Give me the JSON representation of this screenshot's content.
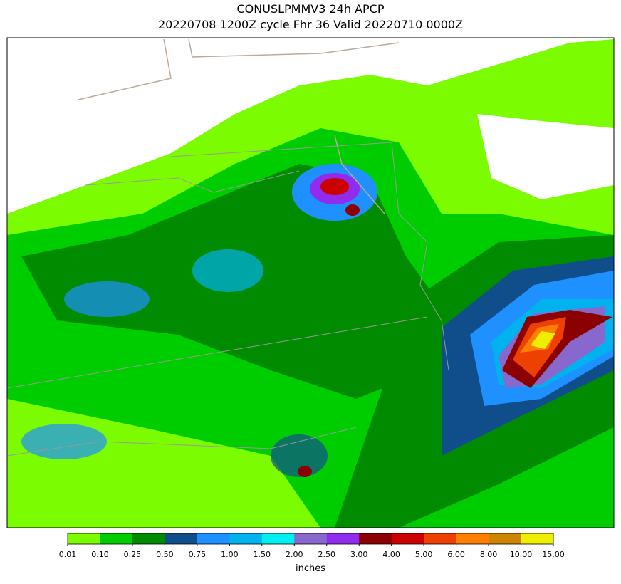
{
  "chart_data": {
    "type": "map",
    "title": "CONUSLPMMV3 24h APCP",
    "subtitle": "20220708 1200Z cycle Fhr 36 Valid 20220710 0000Z",
    "colorbar": {
      "label": "inches",
      "ticks": [
        {
          "value": 0.01,
          "label": "0.01"
        },
        {
          "value": 0.1,
          "label": "0.10"
        },
        {
          "value": 0.25,
          "label": "0.25"
        },
        {
          "value": 0.5,
          "label": "0.50"
        },
        {
          "value": 0.75,
          "label": "0.75"
        },
        {
          "value": 1,
          "label": "1.00"
        },
        {
          "value": 1.5,
          "label": "1.50"
        },
        {
          "value": 2,
          "label": "2.00"
        },
        {
          "value": 2.5,
          "label": "2.50"
        },
        {
          "value": 3,
          "label": "3.00"
        },
        {
          "value": 4,
          "label": "4.00"
        },
        {
          "value": 5,
          "label": "5.00"
        },
        {
          "value": 6,
          "label": "6.00"
        },
        {
          "value": 8,
          "label": "8.00"
        },
        {
          "value": 10,
          "label": "10.00"
        },
        {
          "value": 15,
          "label": "15.00"
        }
      ],
      "colors": [
        "#7cfc00",
        "#00cd00",
        "#008b00",
        "#104e8b",
        "#1e90ff",
        "#00b2ee",
        "#00eeee",
        "#8968cd",
        "#912cee",
        "#8b0000",
        "#cd0000",
        "#ee4000",
        "#ff7f00",
        "#cd8500",
        "#eeee00"
      ]
    }
  }
}
